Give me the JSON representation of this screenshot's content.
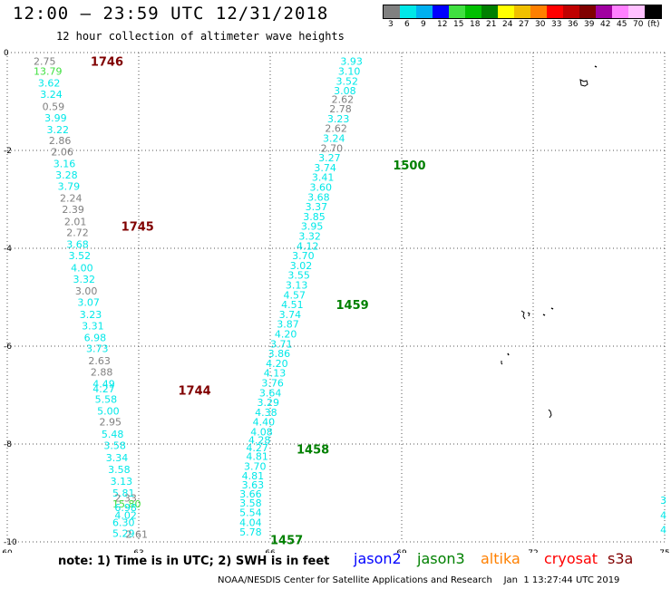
{
  "header": {
    "title": "12:00 – 23:59 UTC 12/31/2018",
    "subtitle": "12 hour collection of altimeter wave heights"
  },
  "legend": {
    "unit_label": "(ft)",
    "bins": [
      {
        "label": "3",
        "color": "#808080"
      },
      {
        "label": "6",
        "color": "#00e8e8"
      },
      {
        "label": "9",
        "color": "#00b0f0"
      },
      {
        "label": "12",
        "color": "#0000ff"
      },
      {
        "label": "15",
        "color": "#40e040"
      },
      {
        "label": "18",
        "color": "#00c000"
      },
      {
        "label": "21",
        "color": "#008000"
      },
      {
        "label": "24",
        "color": "#ffff00"
      },
      {
        "label": "27",
        "color": "#f0c000"
      },
      {
        "label": "30",
        "color": "#ff8000"
      },
      {
        "label": "33",
        "color": "#ff0000"
      },
      {
        "label": "36",
        "color": "#c00000"
      },
      {
        "label": "39",
        "color": "#800000"
      },
      {
        "label": "42",
        "color": "#a000a0"
      },
      {
        "label": "45",
        "color": "#ff80ff"
      },
      {
        "label": "70",
        "color": "#ffc0ff"
      },
      {
        "label": "",
        "color": "#000000"
      }
    ]
  },
  "map": {
    "lon_ticks": [
      "60",
      "63",
      "66",
      "69",
      "72",
      "75"
    ],
    "lat_ticks": [
      "0",
      "-2",
      "-4",
      "-6",
      "-8",
      "-10"
    ],
    "lon_range": [
      60,
      75
    ],
    "lat_range": [
      -10,
      0
    ],
    "time_labels": [
      {
        "text": "1746",
        "lon": 61.9,
        "lat": -0.18,
        "color": "#800000"
      },
      {
        "text": "1745",
        "lon": 62.6,
        "lat": -3.55,
        "color": "#800000"
      },
      {
        "text": "1744",
        "lon": 63.9,
        "lat": -6.9,
        "color": "#800000"
      },
      {
        "text": "1500",
        "lon": 68.8,
        "lat": -2.3,
        "color": "#008000"
      },
      {
        "text": "1459",
        "lon": 67.5,
        "lat": -5.15,
        "color": "#008000"
      },
      {
        "text": "1458",
        "lon": 66.6,
        "lat": -8.1,
        "color": "#008000"
      },
      {
        "text": "1457",
        "lon": 66.0,
        "lat": -9.95,
        "color": "#008000"
      }
    ],
    "track_west": [
      {
        "v": "2.75",
        "lon": 60.6,
        "lat": -0.18,
        "c": "#808080"
      },
      {
        "v": "13.79",
        "lon": 60.6,
        "lat": -0.38,
        "c": "#40e040"
      },
      {
        "v": "3.62",
        "lon": 60.7,
        "lat": -0.62,
        "c": "#00e8e8"
      },
      {
        "v": "3.24",
        "lon": 60.75,
        "lat": -0.85,
        "c": "#00e8e8"
      },
      {
        "v": "0.59",
        "lon": 60.8,
        "lat": -1.1,
        "c": "#808080"
      },
      {
        "v": "3.99",
        "lon": 60.85,
        "lat": -1.33,
        "c": "#00e8e8"
      },
      {
        "v": "3.22",
        "lon": 60.9,
        "lat": -1.57,
        "c": "#00e8e8"
      },
      {
        "v": "2.86",
        "lon": 60.95,
        "lat": -1.8,
        "c": "#808080"
      },
      {
        "v": "2.06",
        "lon": 61.0,
        "lat": -2.03,
        "c": "#808080"
      },
      {
        "v": "3.16",
        "lon": 61.05,
        "lat": -2.27,
        "c": "#00e8e8"
      },
      {
        "v": "3.28",
        "lon": 61.1,
        "lat": -2.5,
        "c": "#00e8e8"
      },
      {
        "v": "3.79",
        "lon": 61.15,
        "lat": -2.73,
        "c": "#00e8e8"
      },
      {
        "v": "2.24",
        "lon": 61.2,
        "lat": -2.97,
        "c": "#808080"
      },
      {
        "v": "2.39",
        "lon": 61.25,
        "lat": -3.2,
        "c": "#808080"
      },
      {
        "v": "2.01",
        "lon": 61.3,
        "lat": -3.45,
        "c": "#808080"
      },
      {
        "v": "2.72",
        "lon": 61.35,
        "lat": -3.68,
        "c": "#808080"
      },
      {
        "v": "3.68",
        "lon": 61.35,
        "lat": -3.92,
        "c": "#00e8e8"
      },
      {
        "v": "3.52",
        "lon": 61.4,
        "lat": -4.15,
        "c": "#00e8e8"
      },
      {
        "v": "4.00",
        "lon": 61.45,
        "lat": -4.4,
        "c": "#00e8e8"
      },
      {
        "v": "3.32",
        "lon": 61.5,
        "lat": -4.63,
        "c": "#00e8e8"
      },
      {
        "v": "3.00",
        "lon": 61.55,
        "lat": -4.87,
        "c": "#808080"
      },
      {
        "v": "3.07",
        "lon": 61.6,
        "lat": -5.1,
        "c": "#00e8e8"
      },
      {
        "v": "3.23",
        "lon": 61.65,
        "lat": -5.35,
        "c": "#00e8e8"
      },
      {
        "v": "3.31",
        "lon": 61.7,
        "lat": -5.58,
        "c": "#00e8e8"
      },
      {
        "v": "6.98",
        "lon": 61.75,
        "lat": -5.82,
        "c": "#00e8e8"
      },
      {
        "v": "3.73",
        "lon": 61.8,
        "lat": -6.05,
        "c": "#00e8e8"
      },
      {
        "v": "2.63",
        "lon": 61.85,
        "lat": -6.3,
        "c": "#808080"
      },
      {
        "v": "2.88",
        "lon": 61.9,
        "lat": -6.53,
        "c": "#808080"
      },
      {
        "v": "4.49",
        "lon": 61.95,
        "lat": -6.77,
        "c": "#00e8e8"
      },
      {
        "v": "4.27",
        "lon": 61.95,
        "lat": -6.87,
        "c": "#00e8e8"
      },
      {
        "v": "5.58",
        "lon": 62.0,
        "lat": -7.08,
        "c": "#00e8e8"
      },
      {
        "v": "5.00",
        "lon": 62.05,
        "lat": -7.32,
        "c": "#00e8e8"
      },
      {
        "v": "2.95",
        "lon": 62.1,
        "lat": -7.55,
        "c": "#808080"
      },
      {
        "v": "5.48",
        "lon": 62.15,
        "lat": -7.8,
        "c": "#00e8e8"
      },
      {
        "v": "3.58",
        "lon": 62.2,
        "lat": -8.03,
        "c": "#00e8e8"
      },
      {
        "v": "3.34",
        "lon": 62.25,
        "lat": -8.28,
        "c": "#00e8e8"
      },
      {
        "v": "3.58",
        "lon": 62.3,
        "lat": -8.52,
        "c": "#00e8e8"
      },
      {
        "v": "3.13",
        "lon": 62.35,
        "lat": -8.76,
        "c": "#00e8e8"
      },
      {
        "v": "5.81",
        "lon": 62.4,
        "lat": -9.0,
        "c": "#00e8e8"
      },
      {
        "v": "2.33",
        "lon": 62.45,
        "lat": -9.1,
        "c": "#808080"
      },
      {
        "v": "15.80",
        "lon": 62.4,
        "lat": -9.22,
        "c": "#40e040"
      },
      {
        "v": "6.98",
        "lon": 62.45,
        "lat": -9.3,
        "c": "#00e8e8"
      },
      {
        "v": "4.02",
        "lon": 62.45,
        "lat": -9.45,
        "c": "#00e8e8"
      },
      {
        "v": "6.30",
        "lon": 62.4,
        "lat": -9.6,
        "c": "#00e8e8"
      },
      {
        "v": "5.29",
        "lon": 62.4,
        "lat": -9.82,
        "c": "#00e8e8"
      },
      {
        "v": "2.61",
        "lon": 62.7,
        "lat": -9.84,
        "c": "#808080"
      }
    ],
    "track_east": [
      {
        "v": "3.93",
        "lon": 67.6,
        "lat": -0.18,
        "c": "#00e8e8"
      },
      {
        "v": "3.10",
        "lon": 67.55,
        "lat": -0.38,
        "c": "#00e8e8"
      },
      {
        "v": "3.52",
        "lon": 67.5,
        "lat": -0.58,
        "c": "#00e8e8"
      },
      {
        "v": "3.08",
        "lon": 67.45,
        "lat": -0.78,
        "c": "#00e8e8"
      },
      {
        "v": "2.62",
        "lon": 67.4,
        "lat": -0.95,
        "c": "#808080"
      },
      {
        "v": "2.78",
        "lon": 67.35,
        "lat": -1.15,
        "c": "#808080"
      },
      {
        "v": "3.23",
        "lon": 67.3,
        "lat": -1.35,
        "c": "#00e8e8"
      },
      {
        "v": "2.62",
        "lon": 67.25,
        "lat": -1.55,
        "c": "#808080"
      },
      {
        "v": "3.24",
        "lon": 67.2,
        "lat": -1.75,
        "c": "#00e8e8"
      },
      {
        "v": "2.70",
        "lon": 67.15,
        "lat": -1.95,
        "c": "#808080"
      },
      {
        "v": "3.27",
        "lon": 67.1,
        "lat": -2.15,
        "c": "#00e8e8"
      },
      {
        "v": "3.74",
        "lon": 67.0,
        "lat": -2.35,
        "c": "#00e8e8"
      },
      {
        "v": "3.41",
        "lon": 66.95,
        "lat": -2.55,
        "c": "#00e8e8"
      },
      {
        "v": "3.60",
        "lon": 66.9,
        "lat": -2.75,
        "c": "#00e8e8"
      },
      {
        "v": "3.68",
        "lon": 66.85,
        "lat": -2.95,
        "c": "#00e8e8"
      },
      {
        "v": "3.37",
        "lon": 66.8,
        "lat": -3.15,
        "c": "#00e8e8"
      },
      {
        "v": "3.85",
        "lon": 66.75,
        "lat": -3.35,
        "c": "#00e8e8"
      },
      {
        "v": "3.95",
        "lon": 66.7,
        "lat": -3.55,
        "c": "#00e8e8"
      },
      {
        "v": "3.32",
        "lon": 66.65,
        "lat": -3.75,
        "c": "#00e8e8"
      },
      {
        "v": "4.12",
        "lon": 66.6,
        "lat": -3.95,
        "c": "#00e8e8"
      },
      {
        "v": "3.70",
        "lon": 66.5,
        "lat": -4.15,
        "c": "#00e8e8"
      },
      {
        "v": "3.02",
        "lon": 66.45,
        "lat": -4.35,
        "c": "#00e8e8"
      },
      {
        "v": "3.55",
        "lon": 66.4,
        "lat": -4.55,
        "c": "#00e8e8"
      },
      {
        "v": "3.13",
        "lon": 66.35,
        "lat": -4.75,
        "c": "#00e8e8"
      },
      {
        "v": "4.57",
        "lon": 66.3,
        "lat": -4.95,
        "c": "#00e8e8"
      },
      {
        "v": "4.51",
        "lon": 66.25,
        "lat": -5.15,
        "c": "#00e8e8"
      },
      {
        "v": "3.74",
        "lon": 66.2,
        "lat": -5.35,
        "c": "#00e8e8"
      },
      {
        "v": "3.87",
        "lon": 66.15,
        "lat": -5.55,
        "c": "#00e8e8"
      },
      {
        "v": "4.20",
        "lon": 66.1,
        "lat": -5.75,
        "c": "#00e8e8"
      },
      {
        "v": "3.71",
        "lon": 66.0,
        "lat": -5.95,
        "c": "#00e8e8"
      },
      {
        "v": "3.86",
        "lon": 65.95,
        "lat": -6.15,
        "c": "#00e8e8"
      },
      {
        "v": "4.20",
        "lon": 65.9,
        "lat": -6.35,
        "c": "#00e8e8"
      },
      {
        "v": "4.13",
        "lon": 65.85,
        "lat": -6.55,
        "c": "#00e8e8"
      },
      {
        "v": "3.76",
        "lon": 65.8,
        "lat": -6.75,
        "c": "#00e8e8"
      },
      {
        "v": "3.64",
        "lon": 65.75,
        "lat": -6.95,
        "c": "#00e8e8"
      },
      {
        "v": "3.29",
        "lon": 65.7,
        "lat": -7.15,
        "c": "#00e8e8"
      },
      {
        "v": "4.38",
        "lon": 65.65,
        "lat": -7.35,
        "c": "#00e8e8"
      },
      {
        "v": "4.40",
        "lon": 65.6,
        "lat": -7.55,
        "c": "#00e8e8"
      },
      {
        "v": "4.08",
        "lon": 65.55,
        "lat": -7.75,
        "c": "#00e8e8"
      },
      {
        "v": "4.28",
        "lon": 65.5,
        "lat": -7.92,
        "c": "#00e8e8"
      },
      {
        "v": "4.27",
        "lon": 65.45,
        "lat": -8.07,
        "c": "#00e8e8"
      },
      {
        "v": "4.81",
        "lon": 65.45,
        "lat": -8.25,
        "c": "#00e8e8"
      },
      {
        "v": "3.70",
        "lon": 65.4,
        "lat": -8.45,
        "c": "#00e8e8"
      },
      {
        "v": "4.81",
        "lon": 65.35,
        "lat": -8.65,
        "c": "#00e8e8"
      },
      {
        "v": "3.63",
        "lon": 65.35,
        "lat": -8.83,
        "c": "#00e8e8"
      },
      {
        "v": "3.66",
        "lon": 65.3,
        "lat": -9.02,
        "c": "#00e8e8"
      },
      {
        "v": "3.58",
        "lon": 65.3,
        "lat": -9.2,
        "c": "#00e8e8"
      },
      {
        "v": "5.54",
        "lon": 65.3,
        "lat": -9.4,
        "c": "#00e8e8"
      },
      {
        "v": "4.04",
        "lon": 65.3,
        "lat": -9.6,
        "c": "#00e8e8"
      },
      {
        "v": "5.78",
        "lon": 65.3,
        "lat": -9.8,
        "c": "#00e8e8"
      }
    ],
    "edge_values": [
      {
        "v": "3",
        "lon": 74.9,
        "lat": -9.15,
        "c": "#00e8e8"
      },
      {
        "v": "4",
        "lon": 74.9,
        "lat": -9.45,
        "c": "#00e8e8"
      },
      {
        "v": "4",
        "lon": 74.9,
        "lat": -9.75,
        "c": "#00e8e8"
      }
    ]
  },
  "footer": {
    "note": "note: 1) Time is in UTC; 2) SWH is in feet",
    "satellites": [
      {
        "name": "jason2",
        "color": "#0000ff"
      },
      {
        "name": "jason3",
        "color": "#008000"
      },
      {
        "name": "altika",
        "color": "#ff8000"
      },
      {
        "name": "cryosat",
        "color": "#ff0000"
      },
      {
        "name": "s3a",
        "color": "#800000"
      }
    ],
    "credit": "NOAA/NESDIS Center for Satellite Applications and Research    Jan  1 13:27:44 UTC 2019"
  }
}
